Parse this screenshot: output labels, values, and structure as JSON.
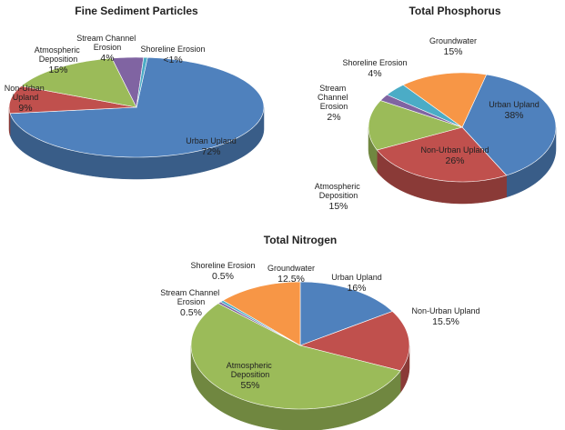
{
  "chart_data": [
    {
      "type": "pie",
      "title": "Fine Sediment Particles",
      "categories": [
        "Urban Upland",
        "Non-Urban Upland",
        "Atmospheric Deposition",
        "Stream Channel Erosion",
        "Shoreline Erosion"
      ],
      "values": [
        72,
        9,
        15,
        4,
        0.5
      ],
      "value_labels": [
        "72%",
        "9%",
        "15%",
        "4%",
        "<1%"
      ],
      "colors": [
        "#4f81bd",
        "#c0504d",
        "#9bbb59",
        "#8064a2",
        "#4bacc6"
      ]
    },
    {
      "type": "pie",
      "title": "Total Phosphorus",
      "categories": [
        "Urban Upland",
        "Non-Urban Upland",
        "Atmospheric Deposition",
        "Stream Channel Erosion",
        "Shoreline Erosion",
        "Groundwater"
      ],
      "values": [
        38,
        26,
        15,
        2,
        4,
        15
      ],
      "value_labels": [
        "38%",
        "26%",
        "15%",
        "2%",
        "4%",
        "15%"
      ],
      "colors": [
        "#4f81bd",
        "#c0504d",
        "#9bbb59",
        "#8064a2",
        "#4bacc6",
        "#f79646"
      ]
    },
    {
      "type": "pie",
      "title": "Total Nitrogen",
      "categories": [
        "Urban Upland",
        "Non-Urban Upland",
        "Atmospheric Deposition",
        "Stream Channel Erosion",
        "Shoreline Erosion",
        "Groundwater"
      ],
      "values": [
        16,
        15.5,
        55,
        0.5,
        0.5,
        12.5
      ],
      "value_labels": [
        "16%",
        "15.5%",
        "55%",
        "0.5%",
        "0.5%",
        "12.5%"
      ],
      "colors": [
        "#4f81bd",
        "#c0504d",
        "#9bbb59",
        "#8064a2",
        "#4bacc6",
        "#f79646"
      ]
    }
  ]
}
